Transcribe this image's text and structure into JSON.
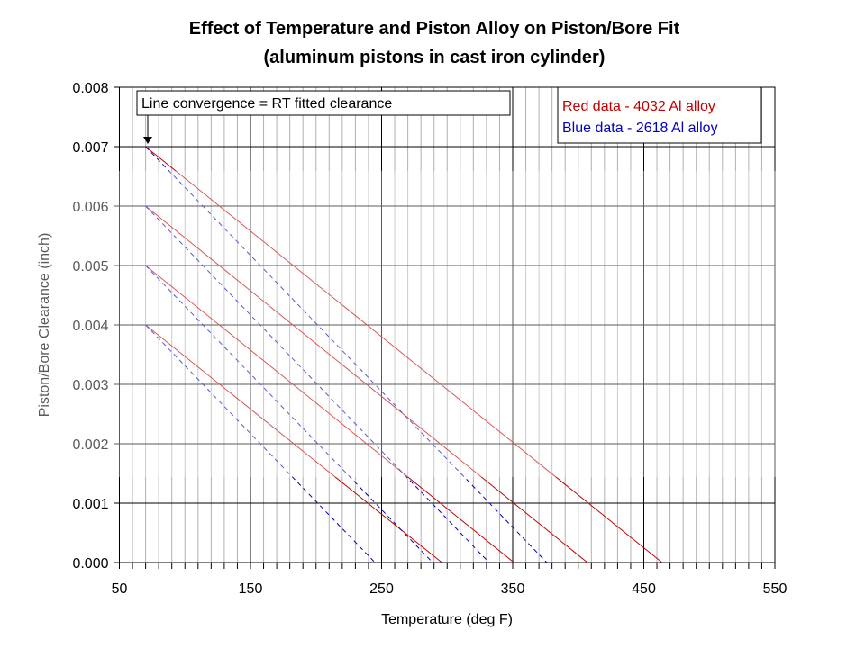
{
  "chart_data": {
    "type": "line",
    "title": "Effect of Temperature and Piston Alloy on Piston/Bore Fit",
    "subtitle": "(aluminum pistons in cast iron cylinder)",
    "xlabel": "Temperature (deg F)",
    "ylabel": "Piston/Bore Clearance (inch)",
    "xlim": [
      50,
      550
    ],
    "ylim": [
      0,
      0.008
    ],
    "x_ticks": [
      "50",
      "150",
      "250",
      "350",
      "450",
      "550"
    ],
    "y_ticks": [
      "0.000",
      "0.001",
      "0.002",
      "0.003",
      "0.004",
      "0.005",
      "0.006",
      "0.007",
      "0.008"
    ],
    "grid": true,
    "legend_position": "top-right",
    "legend": [
      "Red data - 4032 Al alloy",
      "Blue data - 2618 Al alloy"
    ],
    "annotation": "Line convergence = RT fitted clearance",
    "colors": {
      "red": "#c00000",
      "blue": "#0000c0"
    },
    "series": [
      {
        "alloy": "4032",
        "color": "red",
        "style": "solid",
        "x": [
          70,
          296
        ],
        "y": [
          0.004,
          0.0
        ]
      },
      {
        "alloy": "4032",
        "color": "red",
        "style": "solid",
        "x": [
          70,
          351
        ],
        "y": [
          0.005,
          0.0
        ]
      },
      {
        "alloy": "4032",
        "color": "red",
        "style": "solid",
        "x": [
          70,
          407
        ],
        "y": [
          0.006,
          0.0
        ]
      },
      {
        "alloy": "4032",
        "color": "red",
        "style": "solid",
        "x": [
          70,
          464
        ],
        "y": [
          0.007,
          0.0
        ]
      },
      {
        "alloy": "2618",
        "color": "blue",
        "style": "dashed",
        "x": [
          70,
          245
        ],
        "y": [
          0.004,
          0.0
        ]
      },
      {
        "alloy": "2618",
        "color": "blue",
        "style": "dashed",
        "x": [
          70,
          289
        ],
        "y": [
          0.005,
          0.0
        ]
      },
      {
        "alloy": "2618",
        "color": "blue",
        "style": "dashed",
        "x": [
          70,
          332
        ],
        "y": [
          0.006,
          0.0
        ]
      },
      {
        "alloy": "2618",
        "color": "blue",
        "style": "dashed",
        "x": [
          70,
          376
        ],
        "y": [
          0.007,
          0.0
        ]
      }
    ]
  }
}
